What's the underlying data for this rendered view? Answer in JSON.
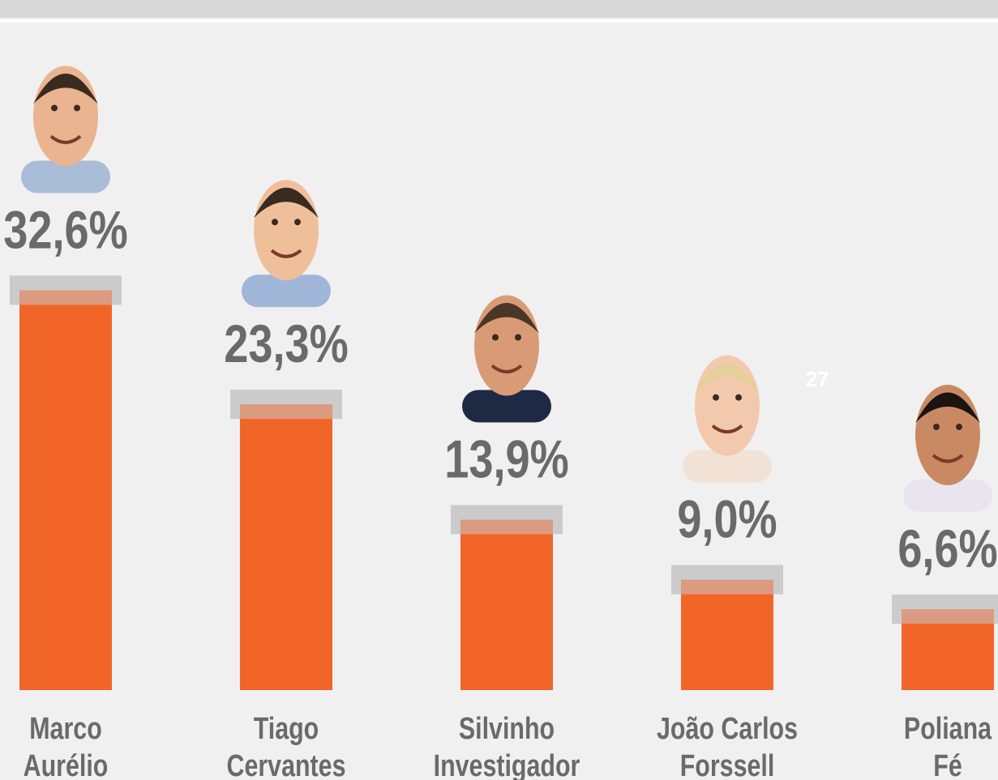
{
  "chart_data": {
    "type": "bar",
    "categories": [
      [
        "Marco",
        "Aurélio"
      ],
      [
        "Tiago",
        "Cervantes"
      ],
      [
        "Silvinho",
        "Investigador"
      ],
      [
        "João Carlos",
        "Forssell"
      ],
      [
        "Poliana",
        "Fé"
      ]
    ],
    "values": [
      32.6,
      23.3,
      13.9,
      9.0,
      6.6
    ],
    "value_labels": [
      "32,6%",
      "23,3%",
      "13,9%",
      "9,0%",
      "6,6%"
    ],
    "color": "#f26529",
    "ylim": [
      0,
      35
    ],
    "annotation": "27"
  }
}
